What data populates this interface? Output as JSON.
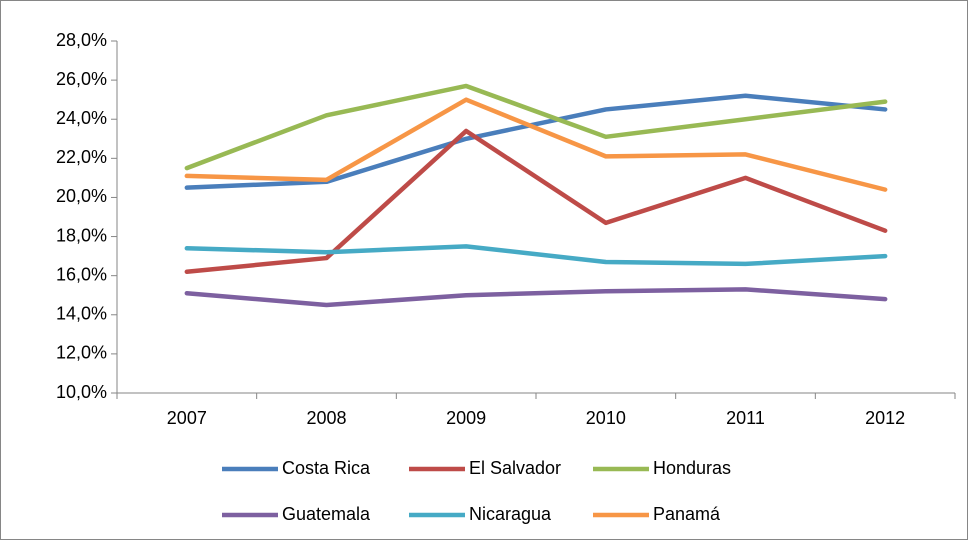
{
  "chart_data": {
    "type": "line",
    "categories": [
      "2007",
      "2008",
      "2009",
      "2010",
      "2011",
      "2012"
    ],
    "series": [
      {
        "name": "Costa Rica",
        "color": "#4a7ebb",
        "values": [
          20.5,
          20.8,
          23.0,
          24.5,
          25.2,
          24.5
        ]
      },
      {
        "name": "El Salvador",
        "color": "#be4b48",
        "values": [
          16.2,
          16.9,
          23.4,
          18.7,
          21.0,
          18.3
        ]
      },
      {
        "name": "Honduras",
        "color": "#98b954",
        "values": [
          21.5,
          24.2,
          25.7,
          23.1,
          24.0,
          24.9
        ]
      },
      {
        "name": "Guatemala",
        "color": "#7d60a0",
        "values": [
          15.1,
          14.5,
          15.0,
          15.2,
          15.3,
          14.8
        ]
      },
      {
        "name": "Nicaragua",
        "color": "#46aac5",
        "values": [
          17.4,
          17.2,
          17.5,
          16.7,
          16.6,
          17.0
        ]
      },
      {
        "name": "Panamá",
        "color": "#f79646",
        "values": [
          21.1,
          20.9,
          25.0,
          22.1,
          22.2,
          20.4
        ]
      }
    ],
    "ylim": [
      10,
      28
    ],
    "yticks": [
      {
        "value": 10,
        "label": "10,0%"
      },
      {
        "value": 12,
        "label": "12,0%"
      },
      {
        "value": 14,
        "label": "14,0%"
      },
      {
        "value": 16,
        "label": "16,0%"
      },
      {
        "value": 18,
        "label": "18,0%"
      },
      {
        "value": 20,
        "label": "20,0%"
      },
      {
        "value": 22,
        "label": "22,0%"
      },
      {
        "value": 24,
        "label": "24,0%"
      },
      {
        "value": 26,
        "label": "26,0%"
      },
      {
        "value": 28,
        "label": "28,0%"
      }
    ],
    "grid": false,
    "legend": "bottom"
  }
}
